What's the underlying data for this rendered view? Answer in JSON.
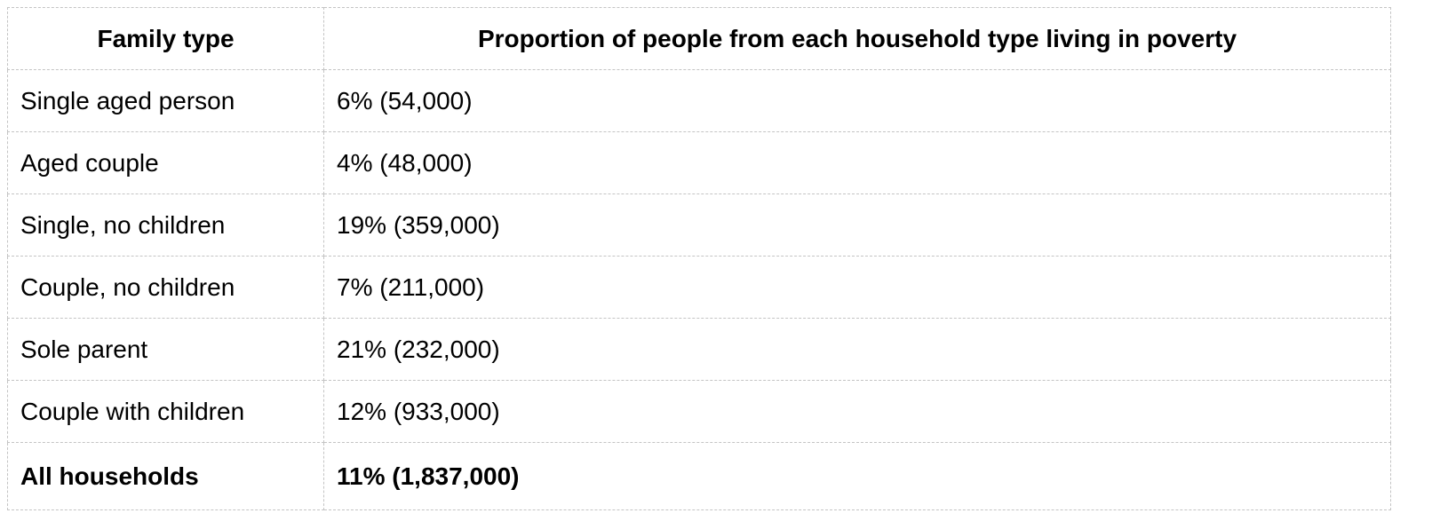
{
  "table": {
    "header": [
      "Family type",
      "Proportion of people from each household type living in poverty"
    ],
    "rows": [
      [
        "Single aged person",
        "6% (54,000)"
      ],
      [
        "Aged couple",
        "4% (48,000)"
      ],
      [
        "Single, no children",
        "19% (359,000)"
      ],
      [
        "Couple, no children",
        "7% (211,000)"
      ],
      [
        "Sole parent",
        "21% (232,000)"
      ],
      [
        "Couple with children",
        "12% (933,000)"
      ],
      [
        "All households",
        "11% (1,837,000)"
      ]
    ]
  }
}
